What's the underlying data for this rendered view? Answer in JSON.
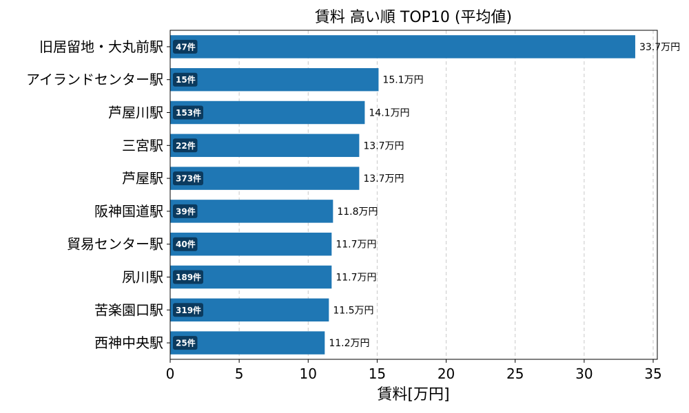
{
  "chart_data": {
    "type": "bar",
    "orientation": "horizontal",
    "title": "賃料 高い順 TOP10 (平均値)",
    "xlabel": "賃料[万円]",
    "ylabel": "",
    "xlim": [
      0,
      35.3
    ],
    "xticks": [
      0,
      5,
      10,
      15,
      20,
      25,
      30,
      35
    ],
    "grid": "x-dashed",
    "bar_color": "#1f77b4",
    "badge_color": "#0b3a5e",
    "categories": [
      "旧居留地・大丸前駅",
      "アイランドセンター駅",
      "芦屋川駅",
      "三宮駅",
      "芦屋駅",
      "阪神国道駅",
      "貿易センター駅",
      "夙川駅",
      "苦楽園口駅",
      "西神中央駅"
    ],
    "values": [
      33.7,
      15.1,
      14.1,
      13.7,
      13.7,
      11.8,
      11.7,
      11.7,
      11.5,
      11.2
    ],
    "value_labels": [
      "33.7万円",
      "15.1万円",
      "14.1万円",
      "13.7万円",
      "13.7万円",
      "11.8万円",
      "11.7万円",
      "11.7万円",
      "11.5万円",
      "11.2万円"
    ],
    "counts": [
      "47件",
      "15件",
      "153件",
      "22件",
      "373件",
      "39件",
      "40件",
      "189件",
      "319件",
      "25件"
    ]
  }
}
